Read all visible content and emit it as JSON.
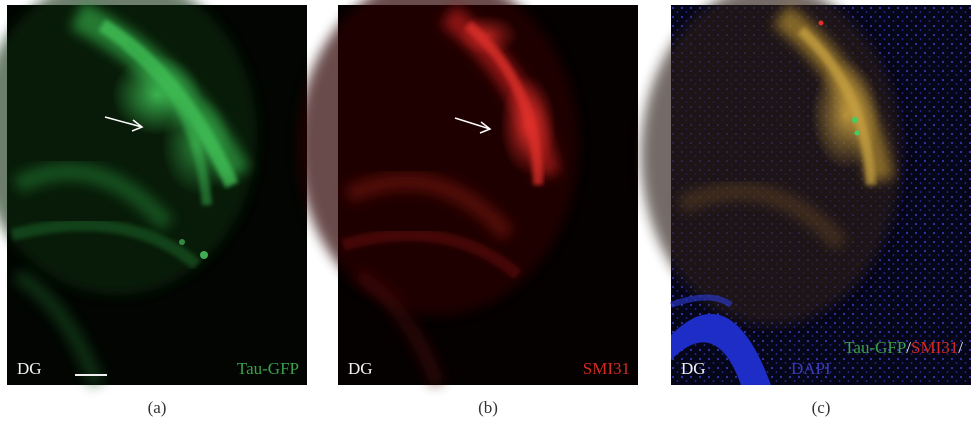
{
  "panels": [
    {
      "id": "a",
      "caption": "(a)",
      "region_label": "DG",
      "marker_label": "Tau-GFP",
      "marker_color": "#3aa04a",
      "has_arrow": true,
      "has_scale_bar": true
    },
    {
      "id": "b",
      "caption": "(b)",
      "region_label": "DG",
      "marker_label": "SMI31",
      "marker_color": "#d42a22",
      "has_arrow": true,
      "has_scale_bar": false
    },
    {
      "id": "c",
      "caption": "(c)",
      "region_label": "DG",
      "merge_labels": {
        "gfp": "Tau-GFP",
        "sep1": "/",
        "smi": "SMI31",
        "sep2": "/",
        "dapi": "DAPI"
      },
      "colors": {
        "gfp": "#3aa04a",
        "smi": "#d42a22",
        "dapi": "#3a3ab8",
        "sep": "#f0f0f0"
      },
      "has_arrow": false,
      "has_scale_bar": false
    }
  ]
}
